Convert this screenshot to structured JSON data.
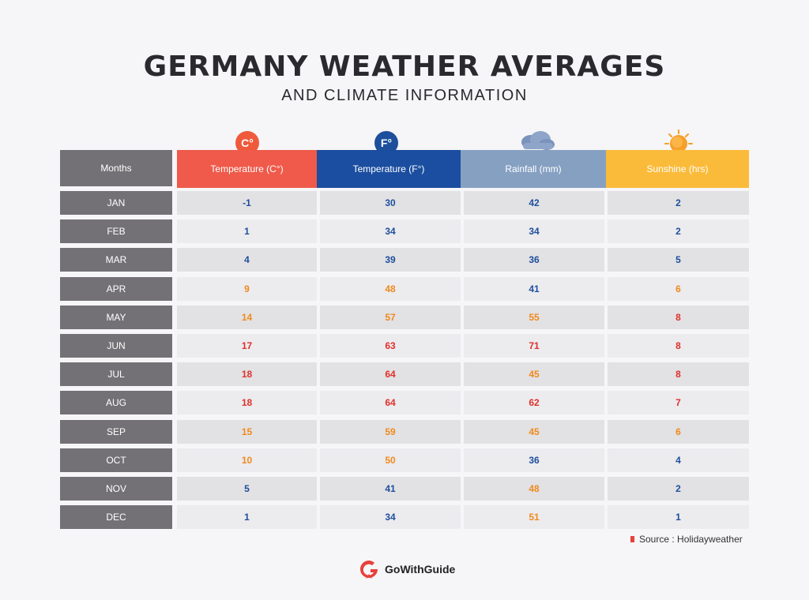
{
  "chart_data": {
    "type": "table",
    "title": "GERMANY WEATHER AVERAGES",
    "subtitle": "AND CLIMATE INFORMATION",
    "columns": [
      "Months",
      "Temperature (C°)",
      "Temperature (F°)",
      "Rainfall (mm)",
      "Sunshine (hrs)"
    ],
    "icon_labels": {
      "celsius": "C°",
      "fahrenheit": "F°"
    },
    "rows": [
      {
        "month": "JAN",
        "c": "-1",
        "f": "30",
        "rain": "42",
        "sun": "2"
      },
      {
        "month": "FEB",
        "c": "1",
        "f": "34",
        "rain": "34",
        "sun": "2"
      },
      {
        "month": "MAR",
        "c": "4",
        "f": "39",
        "rain": "36",
        "sun": "5"
      },
      {
        "month": "APR",
        "c": "9",
        "f": "48",
        "rain": "41",
        "sun": "6"
      },
      {
        "month": "MAY",
        "c": "14",
        "f": "57",
        "rain": "55",
        "sun": "8"
      },
      {
        "month": "JUN",
        "c": "17",
        "f": "63",
        "rain": "71",
        "sun": "8"
      },
      {
        "month": "JUL",
        "c": "18",
        "f": "64",
        "rain": "45",
        "sun": "8"
      },
      {
        "month": "AUG",
        "c": "18",
        "f": "64",
        "rain": "62",
        "sun": "7"
      },
      {
        "month": "SEP",
        "c": "15",
        "f": "59",
        "rain": "45",
        "sun": "6"
      },
      {
        "month": "OCT",
        "c": "10",
        "f": "50",
        "rain": "36",
        "sun": "4"
      },
      {
        "month": "NOV",
        "c": "5",
        "f": "41",
        "rain": "48",
        "sun": "2"
      },
      {
        "month": "DEC",
        "c": "1",
        "f": "34",
        "rain": "51",
        "sun": "1"
      }
    ]
  },
  "colors": {
    "blue": "#1d4f9c",
    "orange": "#f08a1c",
    "red": "#e0302a"
  },
  "cell_colors": [
    [
      "blue",
      "blue",
      "blue",
      "blue"
    ],
    [
      "blue",
      "blue",
      "blue",
      "blue"
    ],
    [
      "blue",
      "blue",
      "blue",
      "blue"
    ],
    [
      "orange",
      "orange",
      "blue",
      "orange"
    ],
    [
      "orange",
      "orange",
      "orange",
      "red"
    ],
    [
      "red",
      "red",
      "red",
      "red"
    ],
    [
      "red",
      "red",
      "orange",
      "red"
    ],
    [
      "red",
      "red",
      "red",
      "red"
    ],
    [
      "orange",
      "orange",
      "orange",
      "orange"
    ],
    [
      "orange",
      "orange",
      "blue",
      "blue"
    ],
    [
      "blue",
      "blue",
      "orange",
      "blue"
    ],
    [
      "blue",
      "blue",
      "orange",
      "blue"
    ]
  ],
  "footer": {
    "source": "Source : Holidayweather",
    "brand": "GoWithGuide"
  }
}
